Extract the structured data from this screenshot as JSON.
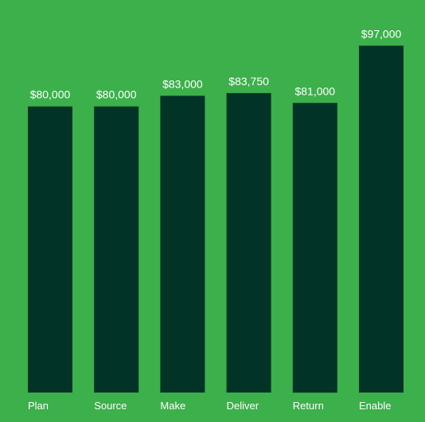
{
  "colors": {
    "background": "#3cb04b",
    "bar": "#013326",
    "text": "#ffffff"
  },
  "chart_data": {
    "type": "bar",
    "title": "",
    "xlabel": "",
    "ylabel": "",
    "categories": [
      "Plan",
      "Source",
      "Make",
      "Deliver",
      "Return",
      "Enable"
    ],
    "values": [
      80000,
      80000,
      83000,
      83750,
      81000,
      97000
    ],
    "value_labels": [
      "$80,000",
      "$80,000",
      "$83,000",
      "$83,750",
      "$81,000",
      "$97,000"
    ],
    "ylim": [
      0,
      108000
    ],
    "grid": false,
    "legend": "none"
  }
}
